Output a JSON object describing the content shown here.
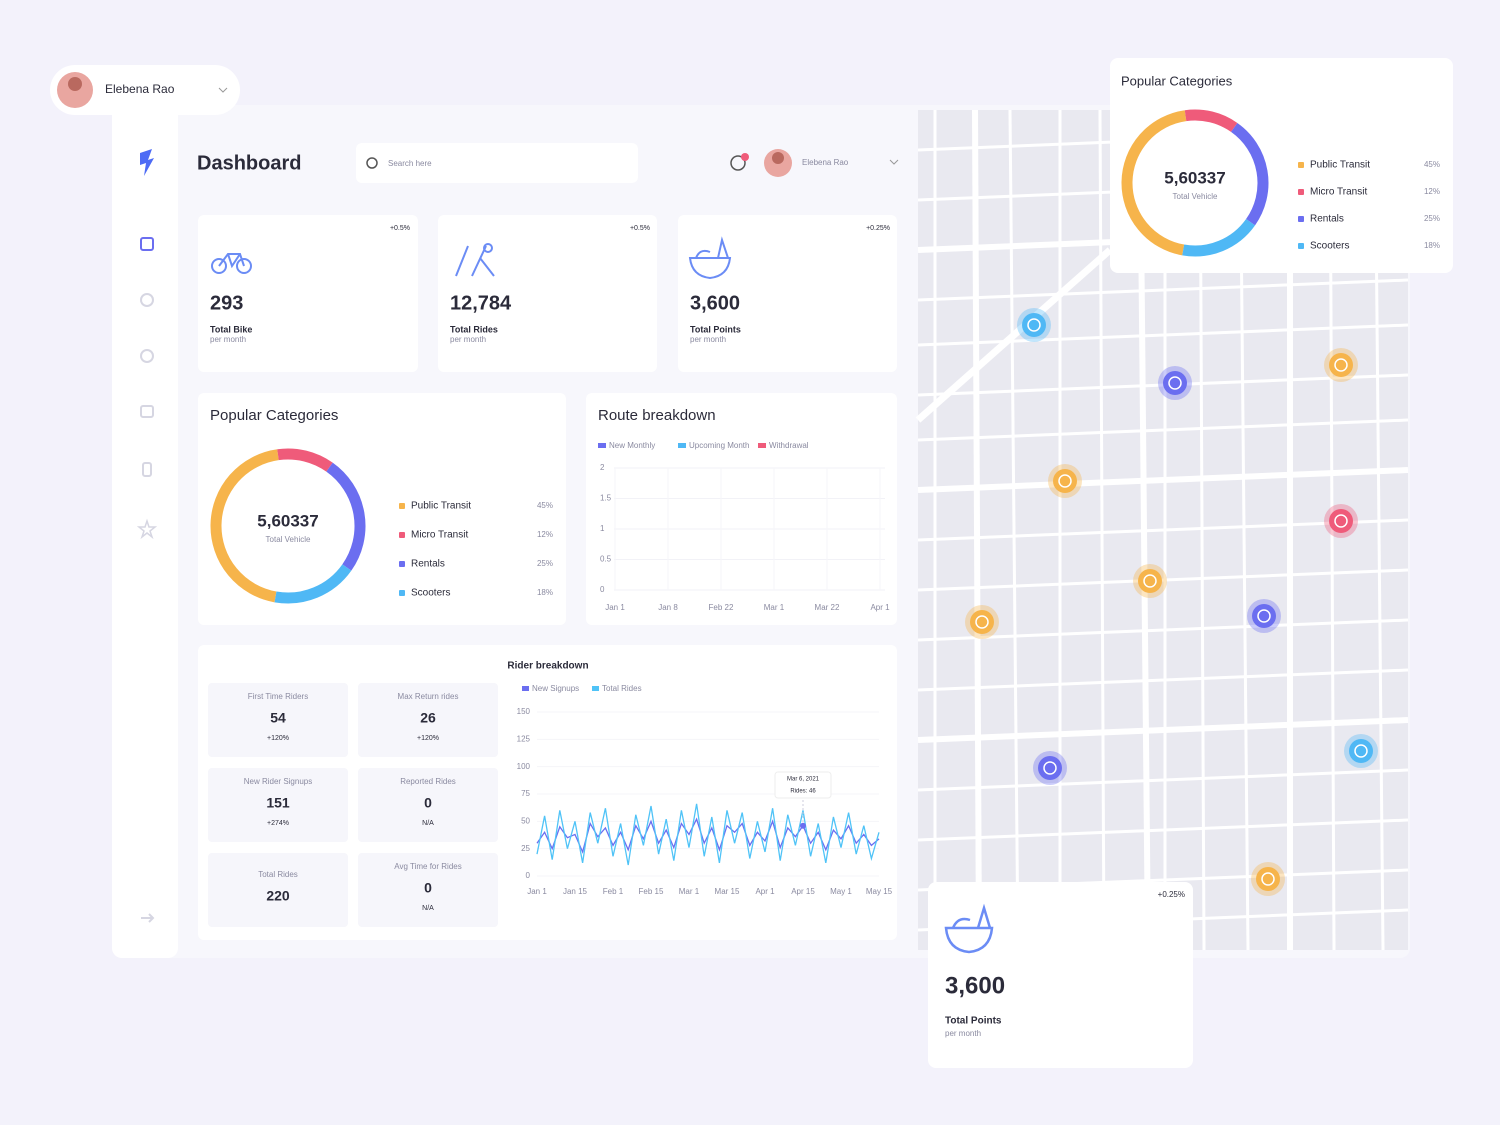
{
  "user_menu": {
    "name": "Elebena Rao"
  },
  "header": {
    "title": "Dashboard",
    "search_placeholder": "Search here",
    "user_name": "Elebena Rao"
  },
  "stats": [
    {
      "value": "293",
      "label": "Total Bike",
      "sub": "per month",
      "badge": "+0.5%"
    },
    {
      "value": "12,784",
      "label": "Total Rides",
      "sub": "per month",
      "badge": "+0.5%"
    },
    {
      "value": "3,600",
      "label": "Total Points",
      "sub": "per month",
      "badge": "+0.25%"
    }
  ],
  "rider_stats": [
    {
      "label": "First Time Riders",
      "value": "54",
      "change": "+120%"
    },
    {
      "label": "Max Return rides",
      "value": "26",
      "change": "+120%"
    },
    {
      "label": "New Rider Signups",
      "value": "151",
      "change": "+274%"
    },
    {
      "label": "Reported Rides",
      "value": "0",
      "change": "N/A"
    },
    {
      "label": "Total Rides",
      "value": "220"
    },
    {
      "label": "Avg Time for Rides",
      "value": "0",
      "change": "N/A"
    }
  ],
  "chart_data": [
    {
      "type": "donut",
      "title": "Popular Categories",
      "total": "5,60337",
      "total_label": "Total Vehicle",
      "categories": [
        "Public Transit",
        "Micro Transit",
        "Rentals",
        "Scooters"
      ],
      "values": [
        45,
        12,
        25,
        18
      ],
      "value_labels": [
        "45%",
        "12%",
        "25%",
        "18%"
      ],
      "colors": [
        "#f6b44b",
        "#ef5b7a",
        "#6b6ef0",
        "#4fb8f5"
      ]
    },
    {
      "type": "line",
      "title": "Route breakdown",
      "categories": [
        "Jan 1",
        "Jan 8",
        "Feb 22",
        "Mar 1",
        "Mar 22",
        "Apr 1"
      ],
      "series": [
        {
          "name": "New Monthly",
          "color": "#6b6ef0"
        },
        {
          "name": "Upcoming Month",
          "color": "#4fb8f5"
        },
        {
          "name": "Withdrawal",
          "color": "#ef5b7a"
        }
      ],
      "ylim": [
        0,
        2
      ],
      "yticks": [
        0,
        0.5,
        1,
        1.5,
        2
      ]
    },
    {
      "type": "line",
      "title": "Rider breakdown",
      "categories": [
        "Jan 1",
        null,
        null,
        null,
        null,
        "Jan 15",
        null,
        null,
        null,
        null,
        "Feb 1",
        null,
        null,
        null,
        null,
        "Feb 15",
        null,
        null,
        null,
        null,
        "Mar 1",
        null,
        null,
        null,
        null,
        "Mar 15",
        null,
        null,
        null,
        null,
        "Apr 1",
        null,
        null,
        null,
        null,
        "Apr 15",
        null,
        null,
        null,
        null,
        "May 1",
        null,
        null,
        null,
        null,
        "May 15"
      ],
      "series": [
        {
          "name": "New Signups",
          "color": "#6b6ef0",
          "values": [
            30,
            40,
            25,
            45,
            35,
            38,
            22,
            48,
            36,
            44,
            28,
            40,
            24,
            46,
            34,
            50,
            30,
            42,
            26,
            48,
            38,
            52,
            30,
            44,
            24,
            46,
            40,
            48,
            28,
            40,
            32,
            50,
            26,
            44,
            36,
            46,
            30,
            40,
            24,
            42,
            34,
            46,
            30,
            38,
            28,
            34
          ]
        },
        {
          "name": "Total Rides",
          "color": "#4fc3f7",
          "values": [
            20,
            55,
            15,
            60,
            25,
            50,
            12,
            58,
            30,
            62,
            18,
            48,
            10,
            56,
            28,
            64,
            20,
            52,
            14,
            60,
            26,
            66,
            18,
            54,
            12,
            60,
            30,
            58,
            16,
            50,
            22,
            62,
            14,
            56,
            28,
            60,
            18,
            48,
            12,
            54,
            26,
            58,
            20,
            46,
            16,
            40
          ]
        }
      ],
      "ylim": [
        0,
        150
      ],
      "yticks": [
        0,
        25,
        50,
        75,
        100,
        125,
        150
      ],
      "annotations": [
        "Mar 6, 2021",
        "Rides: 46"
      ]
    }
  ]
}
